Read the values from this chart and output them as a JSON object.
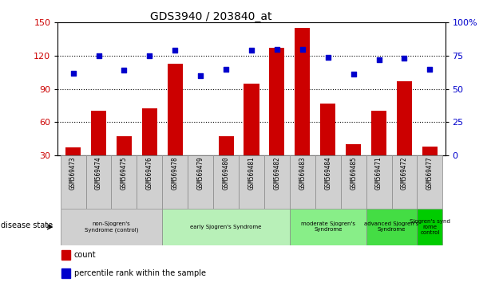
{
  "title": "GDS3940 / 203840_at",
  "samples": [
    "GSM569473",
    "GSM569474",
    "GSM569475",
    "GSM569476",
    "GSM569478",
    "GSM569479",
    "GSM569480",
    "GSM569481",
    "GSM569482",
    "GSM569483",
    "GSM569484",
    "GSM569485",
    "GSM569471",
    "GSM569472",
    "GSM569477"
  ],
  "counts": [
    37,
    70,
    47,
    72,
    113,
    29,
    47,
    95,
    127,
    145,
    77,
    40,
    70,
    97,
    38
  ],
  "percentiles": [
    62,
    75,
    64,
    75,
    79,
    60,
    65,
    79,
    80,
    80,
    74,
    61,
    72,
    73,
    65
  ],
  "bar_color": "#cc0000",
  "dot_color": "#0000cc",
  "ylim_left": [
    30,
    150
  ],
  "ylim_right": [
    0,
    100
  ],
  "yticks_left": [
    30,
    60,
    90,
    120,
    150
  ],
  "yticks_right": [
    0,
    25,
    50,
    75,
    100
  ],
  "ytick_right_labels": [
    "0",
    "25",
    "50",
    "75",
    "100%"
  ],
  "groups": [
    {
      "label": "non-Sjogren's\nSyndrome (control)",
      "start": 0,
      "end": 3,
      "color": "#d0d0d0"
    },
    {
      "label": "early Sjogren's Syndrome",
      "start": 4,
      "end": 8,
      "color": "#b8f0b8"
    },
    {
      "label": "moderate Sjogren's\nSyndrome",
      "start": 9,
      "end": 11,
      "color": "#88ee88"
    },
    {
      "label": "advanced Sjogren's\nSyndrome",
      "start": 12,
      "end": 13,
      "color": "#44dd44"
    },
    {
      "label": "Sjogren's synd\nrome\ncontrol",
      "start": 14,
      "end": 14,
      "color": "#00cc00"
    }
  ],
  "sample_box_color": "#d0d0d0",
  "background_color": "white",
  "tick_label_color_left": "#cc0000",
  "tick_label_color_right": "#0000cc",
  "grid_yticks": [
    60,
    90,
    120
  ]
}
